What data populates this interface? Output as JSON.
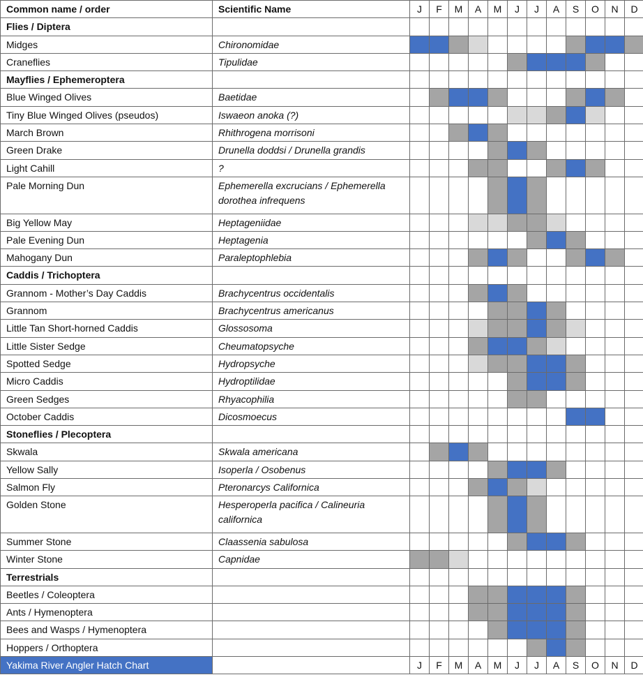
{
  "colors": {
    "B": "#4472C4",
    "G": "#A5A5A5",
    "L": "#D9D9D9",
    "0": "#FFFFFF"
  },
  "legend_codes": {
    "B": "peak hatch (blue)",
    "G": "hatch (gray)",
    "L": "light hatch (light gray)",
    "0": "none"
  },
  "header": {
    "common": "Common name / order",
    "scientific": "Scientific Name"
  },
  "months": [
    "J",
    "F",
    "M",
    "A",
    "M",
    "J",
    "J",
    "A",
    "S",
    "O",
    "N",
    "D"
  ],
  "rows": [
    {
      "type": "group",
      "common": "Flies / Diptera",
      "sci": "",
      "m": "000000000000"
    },
    {
      "common": "Midges",
      "sci": "Chironomidae",
      "m": "BBGL0000GBBG"
    },
    {
      "common": "Craneflies",
      "sci": "Tipulidae",
      "m": "00000GBBBG00"
    },
    {
      "type": "group",
      "common": "Mayflies / Ephemeroptera",
      "sci": "",
      "m": "000000000000"
    },
    {
      "common": "Blue Winged Olives",
      "sci": "Baetidae",
      "m": "0GBBG000GBG0"
    },
    {
      "common": "Tiny Blue Winged Olives (pseudos)",
      "sci": "Iswaeon anoka (?)",
      "m": "00000LLGBL00"
    },
    {
      "common": "March Brown",
      "sci": "Rhithrogena morrisoni",
      "m": "00GBG0000000"
    },
    {
      "common": "Green Drake",
      "sci": "Drunella doddsi / Drunella grandis",
      "m": "0000GBG00000"
    },
    {
      "common": "Light Cahill",
      "sci": "?",
      "m": "000GG00GBG00"
    },
    {
      "common": "Pale Morning Dun",
      "sci": "Ephemerella excrucians / Ephemerella dorothea infrequens",
      "m": "0000GBG00000",
      "tall": true
    },
    {
      "common": "Big Yellow May",
      "sci": "Heptageniidae",
      "m": "000LLGGL0000"
    },
    {
      "common": "Pale Evening Dun",
      "sci": "Heptagenia",
      "m": "000000GBG000"
    },
    {
      "common": "Mahogany Dun",
      "sci": "Paraleptophlebia",
      "m": "000GBG00GBG0"
    },
    {
      "type": "group",
      "common": "Caddis / Trichoptera",
      "sci": "",
      "m": "000000000000"
    },
    {
      "common": "Grannom - Mother’s Day Caddis",
      "sci": "Brachycentrus occidentalis",
      "m": "000GBG000000"
    },
    {
      "common": "Grannom",
      "sci": "Brachycentrus americanus",
      "m": "0000GGBG0000"
    },
    {
      "common": "Little Tan Short-horned Caddis",
      "sci": "Glossosoma",
      "m": "000LGGBGL000"
    },
    {
      "common": "Little Sister Sedge",
      "sci": "Cheumatopsyche",
      "m": "000GBBGL0000"
    },
    {
      "common": "Spotted Sedge",
      "sci": "Hydropsyche",
      "m": "000LGGBBG000"
    },
    {
      "common": "Micro Caddis",
      "sci": "Hydroptilidae",
      "m": "00000GBBG000"
    },
    {
      "common": "Green Sedges",
      "sci": "Rhyacophilia",
      "m": "00000GG00000"
    },
    {
      "common": "October Caddis",
      "sci": "Dicosmoecus",
      "m": "00000000BB00"
    },
    {
      "type": "group",
      "common": "Stoneflies / Plecoptera",
      "sci": "",
      "m": "000000000000"
    },
    {
      "common": "Skwala",
      "sci": "Skwala americana",
      "m": "0GBG00000000"
    },
    {
      "common": "Yellow Sally",
      "sci": "Isoperla / Osobenus",
      "m": "0000GBBG0000"
    },
    {
      "common": "Salmon Fly",
      "sci": "Pteronarcys Californica",
      "m": "000GBGL00000"
    },
    {
      "common": "Golden Stone",
      "sci": "Hesperoperla pacifica / Calineuria californica",
      "m": "0000GBG00000",
      "tall": true
    },
    {
      "common": "Summer Stone",
      "sci": "Claassenia sabulosa",
      "m": "00000GBBG000"
    },
    {
      "common": "Winter Stone",
      "sci": "Capnidae",
      "m": "GGL000000000"
    },
    {
      "type": "group",
      "common": "Terrestrials",
      "sci": "",
      "m": "000000000000"
    },
    {
      "common": "Beetles / Coleoptera",
      "sci": "",
      "m": "000GGBBBG000"
    },
    {
      "common": "Ants / Hymenoptera",
      "sci": "",
      "m": "000GGBBBG000"
    },
    {
      "common": "Bees and Wasps / Hymenoptera",
      "sci": "",
      "m": "0000GBBBG000"
    },
    {
      "common": "Hoppers / Orthoptera",
      "sci": "",
      "m": "000000GBG000"
    }
  ],
  "footer": {
    "title": "Yakima River Angler Hatch Chart",
    "title_bg": "#4472C4"
  }
}
